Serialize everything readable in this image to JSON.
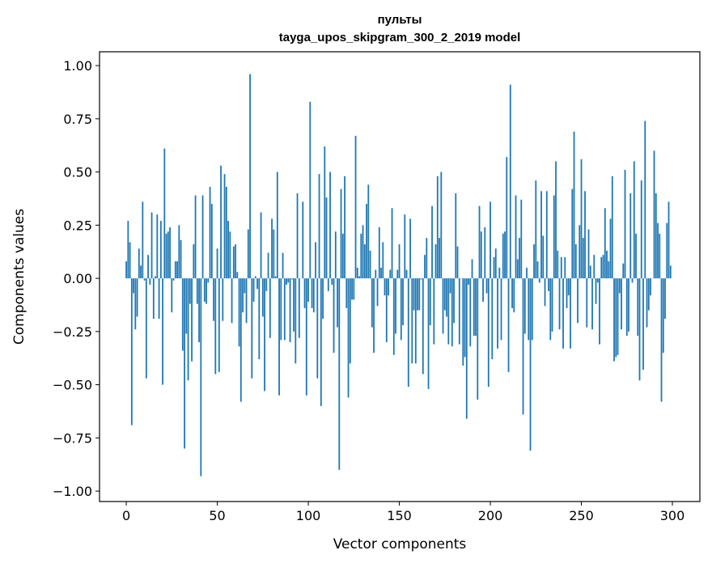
{
  "chart_data": {
    "type": "bar",
    "title": "пульты",
    "subtitle": "tayga_upos_skipgram_300_2_2019 model",
    "xlabel": "Vector components",
    "ylabel": "Components values",
    "xlim": [
      -14.7,
      315.1
    ],
    "ylim": [
      -1.049,
      1.065
    ],
    "xticks": [
      0,
      50,
      100,
      150,
      200,
      250,
      300
    ],
    "yticks": [
      -1.0,
      -0.75,
      -0.5,
      -0.25,
      0.0,
      0.25,
      0.5,
      0.75,
      1.0
    ],
    "ytick_labels": [
      "−1.00",
      "−0.75",
      "−0.50",
      "−0.25",
      "0.00",
      "0.25",
      "0.50",
      "0.75",
      "1.00"
    ],
    "xtick_labels": [
      "0",
      "50",
      "100",
      "150",
      "200",
      "250",
      "300"
    ],
    "grid": false,
    "bar_color": "#1f77b4",
    "values": [
      0.08,
      0.27,
      0.17,
      -0.69,
      -0.07,
      -0.24,
      -0.18,
      0.14,
      0.06,
      0.36,
      -0.01,
      -0.47,
      0.11,
      -0.03,
      0.31,
      -0.19,
      0.01,
      0.3,
      -0.19,
      0.27,
      -0.5,
      0.61,
      0.21,
      0.22,
      0.24,
      -0.16,
      -0.01,
      0.08,
      0.08,
      0.25,
      0.18,
      -0.34,
      -0.8,
      -0.26,
      -0.48,
      -0.12,
      -0.39,
      0.16,
      0.39,
      -0.12,
      -0.3,
      -0.93,
      0.39,
      -0.11,
      -0.12,
      -0.02,
      0.43,
      0.35,
      -0.2,
      -0.45,
      0.14,
      -0.44,
      0.53,
      -0.2,
      0.49,
      0.43,
      0.27,
      0.22,
      -0.21,
      0.15,
      0.16,
      0.03,
      -0.32,
      -0.58,
      -0.16,
      -0.07,
      -0.21,
      0.23,
      0.96,
      -0.47,
      -0.11,
      0.01,
      -0.05,
      -0.38,
      0.31,
      -0.18,
      -0.53,
      -0.06,
      0.12,
      -0.28,
      0.28,
      0.23,
      0.01,
      0.5,
      -0.55,
      -0.29,
      0.12,
      -0.29,
      -0.03,
      -0.02,
      -0.3,
      -0.005,
      -0.25,
      -0.4,
      0.4,
      -0.28,
      0.0,
      0.36,
      -0.14,
      -0.55,
      -0.11,
      0.83,
      -0.14,
      -0.16,
      0.17,
      -0.47,
      0.49,
      -0.6,
      -0.19,
      0.62,
      0.38,
      -0.06,
      0.5,
      -0.03,
      -0.35,
      0.22,
      -0.23,
      -0.9,
      0.42,
      0.21,
      0.48,
      -0.14,
      -0.56,
      -0.4,
      -0.1,
      -0.1,
      0.67,
      0.05,
      0.01,
      0.21,
      0.25,
      0.16,
      0.35,
      0.44,
      0.13,
      -0.23,
      -0.35,
      0.04,
      -0.13,
      0.24,
      0.05,
      0.17,
      -0.08,
      -0.3,
      -0.08,
      0.04,
      0.33,
      -0.36,
      -0.26,
      0.04,
      0.16,
      -0.29,
      -0.22,
      0.3,
      0.04,
      -0.51,
      0.28,
      -0.4,
      -0.15,
      -0.4,
      -0.15,
      -0.15,
      -0.005,
      -0.45,
      0.11,
      0.19,
      -0.52,
      -0.22,
      0.34,
      -0.31,
      0.16,
      0.48,
      0.19,
      0.5,
      -0.26,
      -0.15,
      -0.18,
      -0.31,
      -0.07,
      -0.32,
      -0.21,
      0.4,
      0.15,
      -0.31,
      0.0,
      -0.41,
      -0.37,
      -0.66,
      -0.03,
      -0.32,
      0.09,
      -0.27,
      -0.27,
      -0.57,
      0.34,
      0.22,
      -0.11,
      0.24,
      -0.07,
      -0.51,
      0.36,
      -0.38,
      0.1,
      0.14,
      -0.33,
      0.05,
      -0.29,
      0.21,
      0.22,
      0.57,
      -0.44,
      0.91,
      -0.14,
      -0.16,
      0.39,
      0.09,
      0.19,
      0.37,
      -0.64,
      -0.26,
      0.05,
      -0.29,
      -0.81,
      -0.29,
      0.16,
      0.46,
      0.08,
      -0.02,
      0.41,
      0.2,
      -0.13,
      0.41,
      -0.06,
      -0.29,
      -0.25,
      0.39,
      0.55,
      0.13,
      -0.24,
      0.1,
      -0.33,
      0.1,
      -0.14,
      -0.08,
      -0.33,
      0.42,
      0.69,
      0.16,
      -0.21,
      0.25,
      0.56,
      0.19,
      0.41,
      -0.23,
      0.23,
      0.06,
      -0.24,
      0.11,
      -0.12,
      -0.02,
      -0.31,
      0.1,
      0.11,
      0.33,
      0.13,
      0.08,
      0.28,
      0.48,
      -0.39,
      -0.37,
      -0.36,
      -0.07,
      -0.24,
      0.07,
      0.51,
      -0.27,
      -0.25,
      0.4,
      -0.02,
      0.55,
      0.21,
      -0.27,
      -0.48,
      0.46,
      -0.43,
      0.74,
      -0.23,
      -0.15,
      -0.08,
      0.0,
      0.6,
      0.4,
      0.26,
      0.21,
      -0.58,
      -0.35,
      -0.19,
      0.26,
      0.36,
      0.06
    ]
  }
}
